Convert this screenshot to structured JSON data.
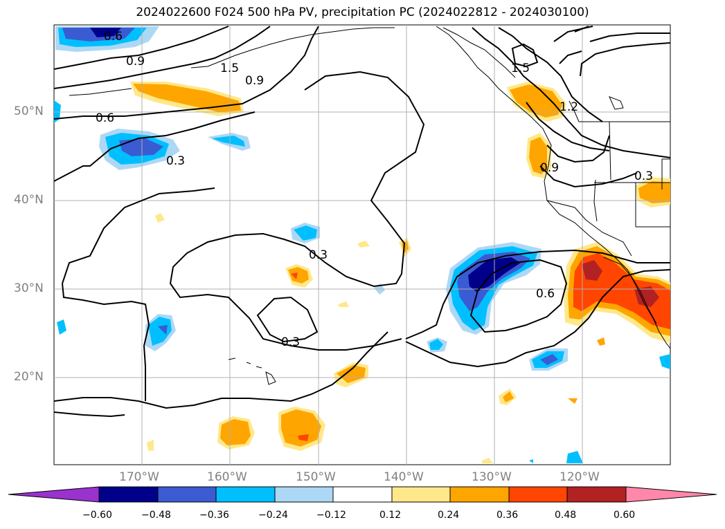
{
  "title": "2024022600 F024 500 hPa PV, precipitation PC (2024022812 - 2024030100)",
  "latitude_labels": [
    "50°N",
    "40°N",
    "30°N",
    "20°N"
  ],
  "longitude_labels": [
    "170°W",
    "160°W",
    "150°W",
    "140°W",
    "130°W",
    "120°W"
  ],
  "contour_labels": [
    "0.6",
    "0.9",
    "1.5",
    "0.9",
    "1.5",
    "1.2",
    "0.6",
    "0.3",
    "0.9",
    "0.3",
    "0.3",
    "0.6",
    "0.3"
  ],
  "colorbar": {
    "ticks": [
      "−0.60",
      "−0.48",
      "−0.36",
      "−0.24",
      "−0.12",
      "0.12",
      "0.24",
      "0.36",
      "0.48",
      "0.60"
    ],
    "colors": [
      "#9a32cd",
      "#00008b",
      "#3a5bd1",
      "#00bfff",
      "#add8f5",
      "#ffffff",
      "#ffe88a",
      "#ffa500",
      "#ff4500",
      "#b22222",
      "#ff88aa"
    ]
  },
  "colors": {
    "coast": "#000000",
    "grid": "#b0b0b0",
    "contour": "#000000"
  }
}
